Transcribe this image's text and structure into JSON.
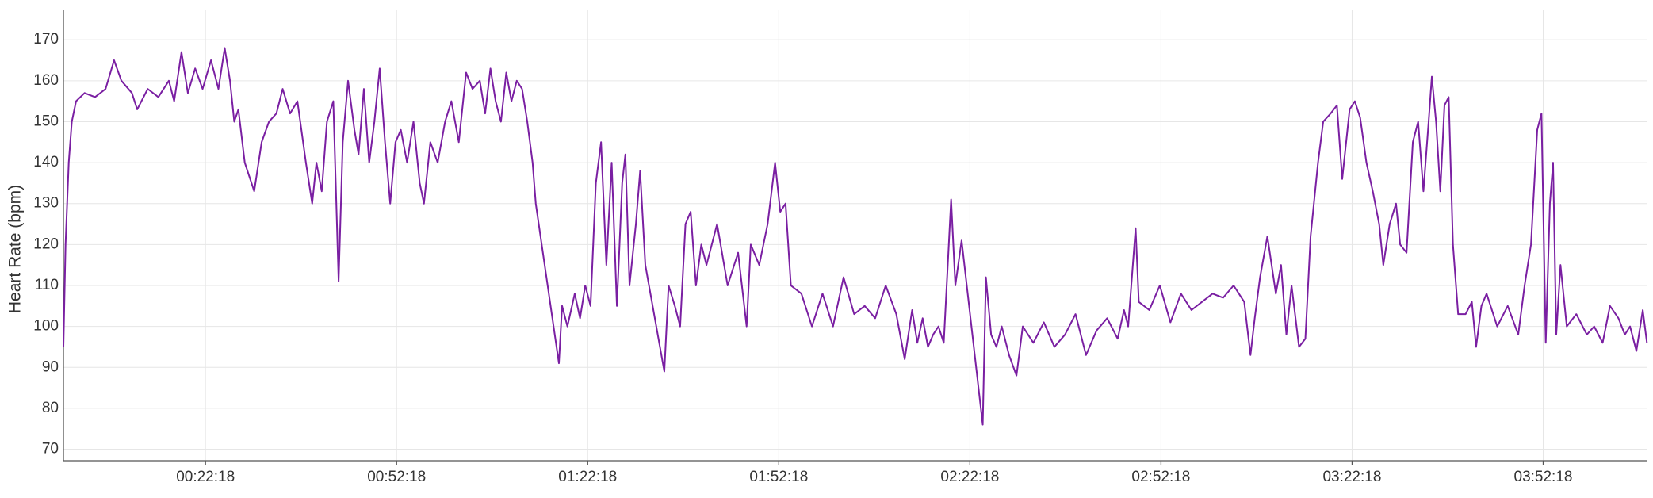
{
  "chart_data": {
    "type": "line",
    "y_label": "Heart Rate (bpm)",
    "xlim": [
      0,
      14920
    ],
    "ylim": [
      67.2,
      177.2
    ],
    "xticks": [
      {
        "value": 1338,
        "label": "00:22:18"
      },
      {
        "value": 3138,
        "label": "00:52:18"
      },
      {
        "value": 4938,
        "label": "01:22:18"
      },
      {
        "value": 6738,
        "label": "01:52:18"
      },
      {
        "value": 8538,
        "label": "02:22:18"
      },
      {
        "value": 10338,
        "label": "02:52:18"
      },
      {
        "value": 12138,
        "label": "03:22:18"
      },
      {
        "value": 13938,
        "label": "03:52:18"
      }
    ],
    "yticks": [
      70,
      80,
      90,
      100,
      110,
      120,
      130,
      140,
      150,
      160,
      170
    ],
    "grid": true,
    "x": [
      0,
      20,
      50,
      79,
      119,
      199,
      298,
      397,
      477,
      546,
      645,
      695,
      794,
      894,
      993,
      1043,
      1112,
      1172,
      1241,
      1311,
      1390,
      1460,
      1519,
      1569,
      1609,
      1648,
      1708,
      1797,
      1867,
      1936,
      2006,
      2065,
      2135,
      2204,
      2284,
      2343,
      2383,
      2433,
      2482,
      2542,
      2592,
      2631,
      2681,
      2741,
      2780,
      2830,
      2880,
      2929,
      2979,
      3029,
      3078,
      3128,
      3178,
      3237,
      3297,
      3356,
      3396,
      3456,
      3525,
      3595,
      3654,
      3724,
      3793,
      3853,
      3922,
      3972,
      4022,
      4071,
      4121,
      4171,
      4220,
      4270,
      4320,
      4369,
      4419,
      4449,
      4667,
      4697,
      4747,
      4816,
      4866,
      4915,
      4965,
      5015,
      5064,
      5114,
      5164,
      5213,
      5263,
      5293,
      5332,
      5392,
      5432,
      5481,
      5660,
      5700,
      5759,
      5809,
      5859,
      5908,
      5958,
      6008,
      6057,
      6157,
      6256,
      6355,
      6435,
      6474,
      6554,
      6633,
      6703,
      6752,
      6802,
      6852,
      6951,
      7050,
      7150,
      7249,
      7348,
      7448,
      7547,
      7646,
      7745,
      7845,
      7924,
      7994,
      8043,
      8093,
      8143,
      8192,
      8242,
      8292,
      8361,
      8401,
      8460,
      8659,
      8689,
      8738,
      8788,
      8838,
      8907,
      8977,
      9036,
      9136,
      9235,
      9334,
      9434,
      9533,
      9632,
      9731,
      9831,
      9930,
      9990,
      10029,
      10099,
      10129,
      10228,
      10327,
      10427,
      10526,
      10625,
      10724,
      10824,
      10923,
      11022,
      11122,
      11181,
      11221,
      11271,
      11340,
      11420,
      11469,
      11519,
      11568,
      11638,
      11698,
      11747,
      11817,
      11866,
      11936,
      11995,
      12045,
      12115,
      12164,
      12214,
      12273,
      12333,
      12393,
      12432,
      12492,
      12552,
      12591,
      12651,
      12710,
      12760,
      12810,
      12859,
      12889,
      12929,
      12969,
      13008,
      13048,
      13088,
      13137,
      13207,
      13266,
      13306,
      13356,
      13405,
      13505,
      13604,
      13703,
      13763,
      13823,
      13882,
      13922,
      13962,
      14001,
      14031,
      14061,
      14101,
      14160,
      14250,
      14349,
      14418,
      14498,
      14567,
      14647,
      14707,
      14756,
      14816,
      14876,
      14915
    ],
    "series": [
      {
        "name": "Heart Rate",
        "color": "#7a1fa2",
        "values": [
          95,
          120,
          140,
          150,
          155,
          157,
          156,
          158,
          165,
          160,
          157,
          153,
          158,
          156,
          160,
          155,
          167,
          157,
          163,
          158,
          165,
          158,
          168,
          160,
          150,
          153,
          140,
          133,
          145,
          150,
          152,
          158,
          152,
          155,
          140,
          130,
          140,
          133,
          150,
          155,
          111,
          145,
          160,
          148,
          142,
          158,
          140,
          150,
          163,
          145,
          130,
          145,
          148,
          140,
          150,
          135,
          130,
          145,
          140,
          150,
          155,
          145,
          162,
          158,
          160,
          152,
          163,
          155,
          150,
          162,
          155,
          160,
          158,
          150,
          140,
          130,
          91,
          105,
          100,
          108,
          102,
          110,
          105,
          135,
          145,
          115,
          140,
          105,
          135,
          142,
          110,
          125,
          138,
          115,
          89,
          110,
          105,
          100,
          125,
          128,
          110,
          120,
          115,
          125,
          110,
          118,
          100,
          120,
          115,
          125,
          140,
          128,
          130,
          110,
          108,
          100,
          108,
          100,
          112,
          103,
          105,
          102,
          110,
          103,
          92,
          104,
          96,
          102,
          95,
          98,
          100,
          96,
          131,
          110,
          121,
          76,
          112,
          98,
          95,
          100,
          93,
          88,
          100,
          96,
          101,
          95,
          98,
          103,
          93,
          99,
          102,
          97,
          104,
          100,
          124,
          106,
          104,
          110,
          101,
          108,
          104,
          106,
          108,
          107,
          110,
          106,
          93,
          102,
          112,
          122,
          108,
          115,
          98,
          110,
          95,
          97,
          122,
          140,
          150,
          152,
          154,
          136,
          153,
          155,
          151,
          140,
          133,
          125,
          115,
          125,
          130,
          120,
          118,
          145,
          150,
          133,
          150,
          161,
          150,
          133,
          154,
          156,
          120,
          103,
          103,
          106,
          95,
          105,
          108,
          100,
          105,
          98,
          110,
          120,
          148,
          152,
          96,
          130,
          140,
          98,
          115,
          100,
          103,
          98,
          100,
          96,
          105,
          102,
          98,
          100,
          94,
          104,
          96
        ]
      }
    ]
  }
}
